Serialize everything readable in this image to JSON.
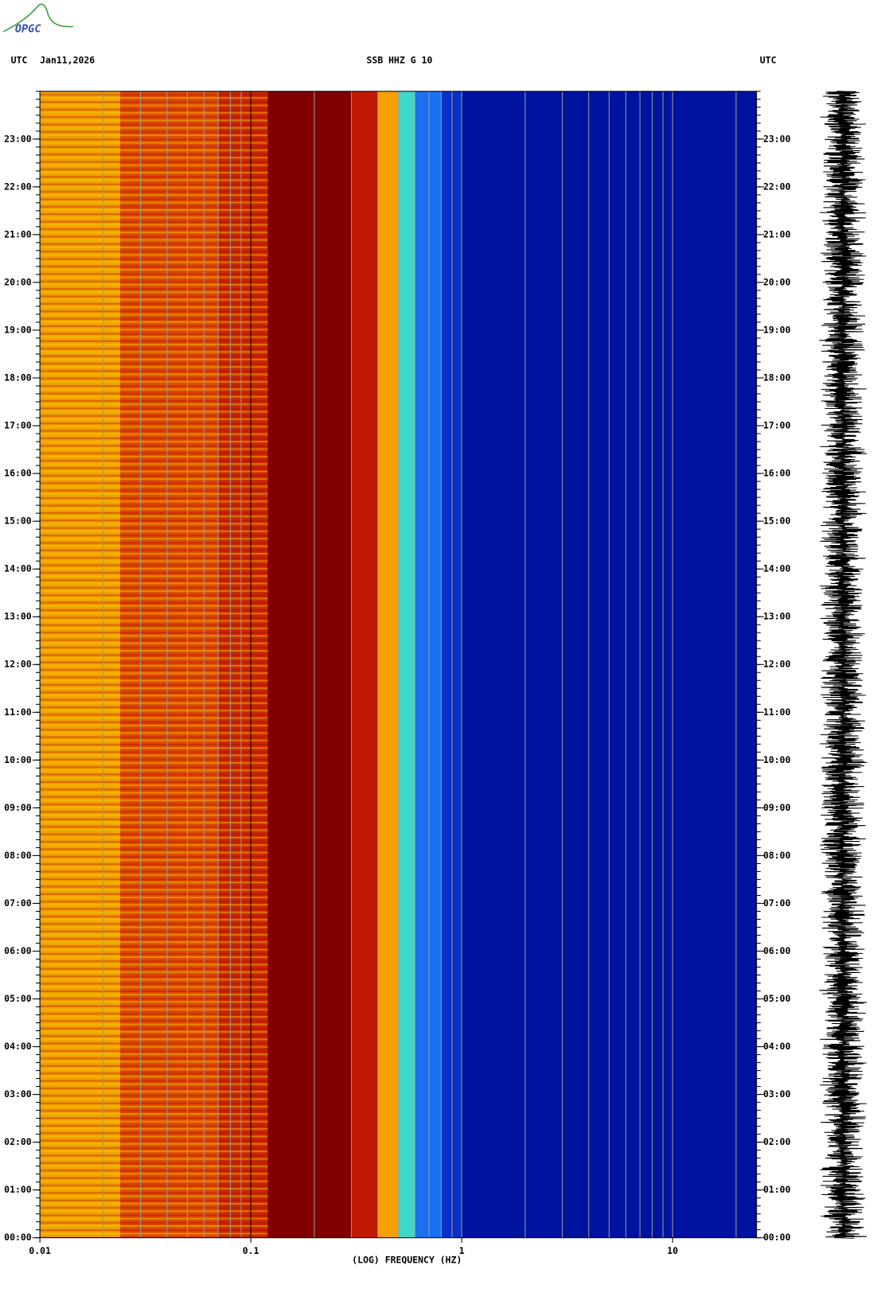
{
  "chart_data": {
    "type": "spectrogram",
    "logo": "OPGC",
    "timezone_labels": [
      "UTC",
      "UTC"
    ],
    "date_label": "Jan11,2026",
    "title": "SSB HHZ G 10",
    "xlabel": "(LOG) FREQUENCY (HZ)",
    "xscale": "log",
    "xlim": [
      0.01,
      25
    ],
    "xticks": [
      0.01,
      0.1,
      1,
      10
    ],
    "ylim": [
      0,
      24
    ],
    "yticks": [
      {
        "value": 0,
        "label": "00:00"
      },
      {
        "value": 1,
        "label": "01:00"
      },
      {
        "value": 2,
        "label": "02:00"
      },
      {
        "value": 3,
        "label": "03:00"
      },
      {
        "value": 4,
        "label": "04:00"
      },
      {
        "value": 5,
        "label": "05:00"
      },
      {
        "value": 6,
        "label": "06:00"
      },
      {
        "value": 7,
        "label": "07:00"
      },
      {
        "value": 8,
        "label": "08:00"
      },
      {
        "value": 9,
        "label": "09:00"
      },
      {
        "value": 10,
        "label": "10:00"
      },
      {
        "value": 11,
        "label": "11:00"
      },
      {
        "value": 12,
        "label": "12:00"
      },
      {
        "value": 13,
        "label": "13:00"
      },
      {
        "value": 14,
        "label": "14:00"
      },
      {
        "value": 15,
        "label": "15:00"
      },
      {
        "value": 16,
        "label": "16:00"
      },
      {
        "value": 17,
        "label": "17:00"
      },
      {
        "value": 18,
        "label": "18:00"
      },
      {
        "value": 19,
        "label": "19:00"
      },
      {
        "value": 20,
        "label": "20:00"
      },
      {
        "value": 21,
        "label": "21:00"
      },
      {
        "value": 22,
        "label": "22:00"
      },
      {
        "value": 23,
        "label": "23:00"
      }
    ],
    "grid": true,
    "bands": [
      {
        "from": 0.01,
        "to": 0.024,
        "color": "#f0a000"
      },
      {
        "from": 0.024,
        "to": 0.07,
        "color": "#dc4a00"
      },
      {
        "from": 0.07,
        "to": 0.12,
        "color": "#c82800"
      },
      {
        "from": 0.12,
        "to": 0.3,
        "color": "#800000"
      },
      {
        "from": 0.3,
        "to": 0.4,
        "color": "#c01800"
      },
      {
        "from": 0.4,
        "to": 0.5,
        "color": "#f8a000"
      },
      {
        "from": 0.5,
        "to": 0.6,
        "color": "#40d8c8"
      },
      {
        "from": 0.6,
        "to": 0.8,
        "color": "#1a70f0"
      },
      {
        "from": 0.8,
        "to": 1,
        "color": "#0a30c8"
      },
      {
        "from": 1,
        "to": 25,
        "color": "#0012a0"
      }
    ]
  }
}
